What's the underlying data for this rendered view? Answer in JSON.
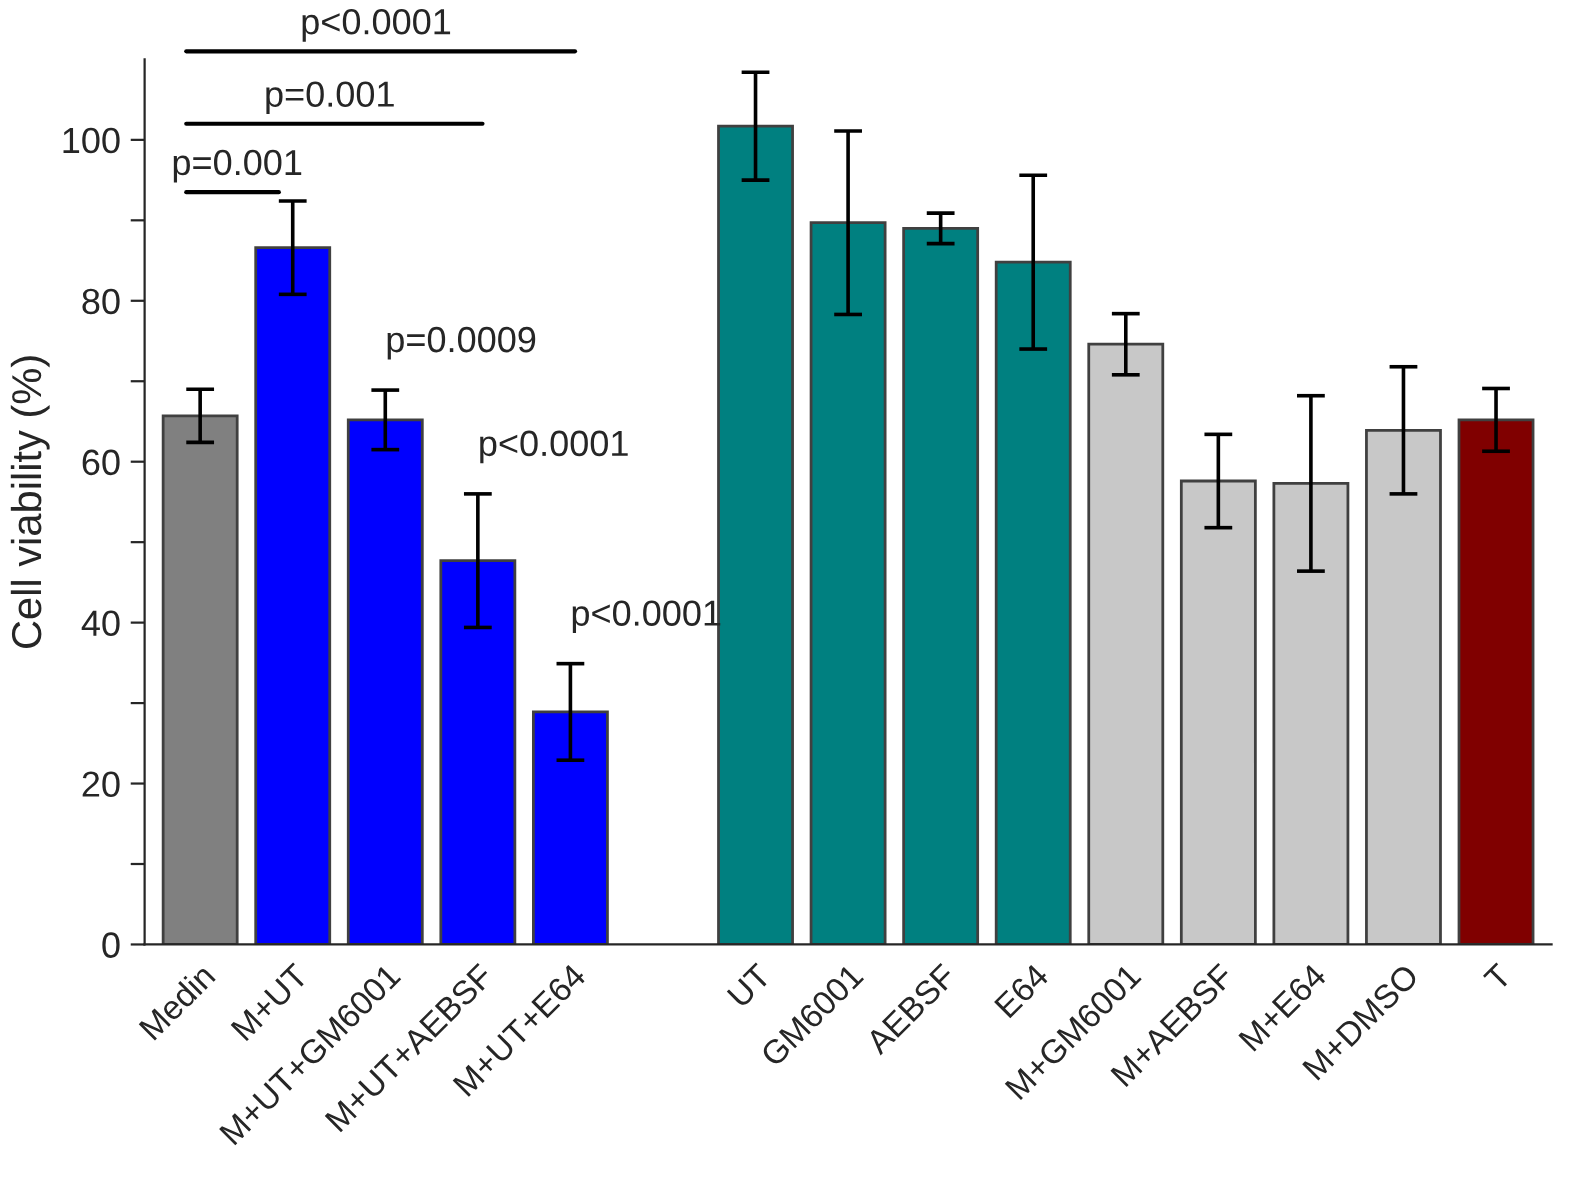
{
  "chart_data": {
    "type": "bar",
    "ylabel": "Cell viability (%)",
    "categories": [
      "Medin",
      "M+UT",
      "M+UT+GM6001",
      "M+UT+AEBSF",
      "M+UT+E64",
      null,
      "UT",
      "GM6001",
      "AEBSF",
      "E64",
      "M+GM6001",
      "M+AEBSF",
      "M+E64",
      "M+DMSO",
      "T"
    ],
    "values": [
      65.7,
      86.6,
      65.2,
      47.7,
      28.9,
      null,
      101.7,
      89.7,
      89.0,
      84.8,
      74.6,
      57.6,
      57.3,
      63.9,
      65.2
    ],
    "errors": [
      3.3,
      5.8,
      3.7,
      8.3,
      6.0,
      null,
      6.7,
      11.4,
      1.9,
      10.8,
      3.8,
      5.8,
      10.9,
      7.9,
      3.9
    ],
    "colors": [
      "#808080",
      "#0000ff",
      "#0000ff",
      "#0000ff",
      "#0000ff",
      "#ffffff",
      "#008080",
      "#008080",
      "#008080",
      "#008080",
      "#c8c8c8",
      "#c8c8c8",
      "#c8c8c8",
      "#c8c8c8",
      "#800000"
    ],
    "ylim": [
      0,
      110
    ],
    "yticks": [
      0,
      {
        "value": 10,
        "label": null
      },
      20,
      {
        "value": 30,
        "label": null
      },
      40,
      {
        "value": 50,
        "label": null
      },
      60,
      {
        "value": 70,
        "label": null
      },
      80,
      {
        "value": 90,
        "label": null
      },
      100
    ],
    "annotations": [
      "p=0.001",
      "p=0.001",
      "p<0.0001",
      {
        "text": "p=0.0009",
        "x": "M+UT+GM6001",
        "y": 68.9
      },
      {
        "text": "p<0.0001",
        "x": "M+UT+AEBSF",
        "y": 56.0
      },
      {
        "text": "p<0.0001",
        "x": "M+UT+E64",
        "y": 34.9
      }
    ],
    "grid": false,
    "legend": false
  }
}
